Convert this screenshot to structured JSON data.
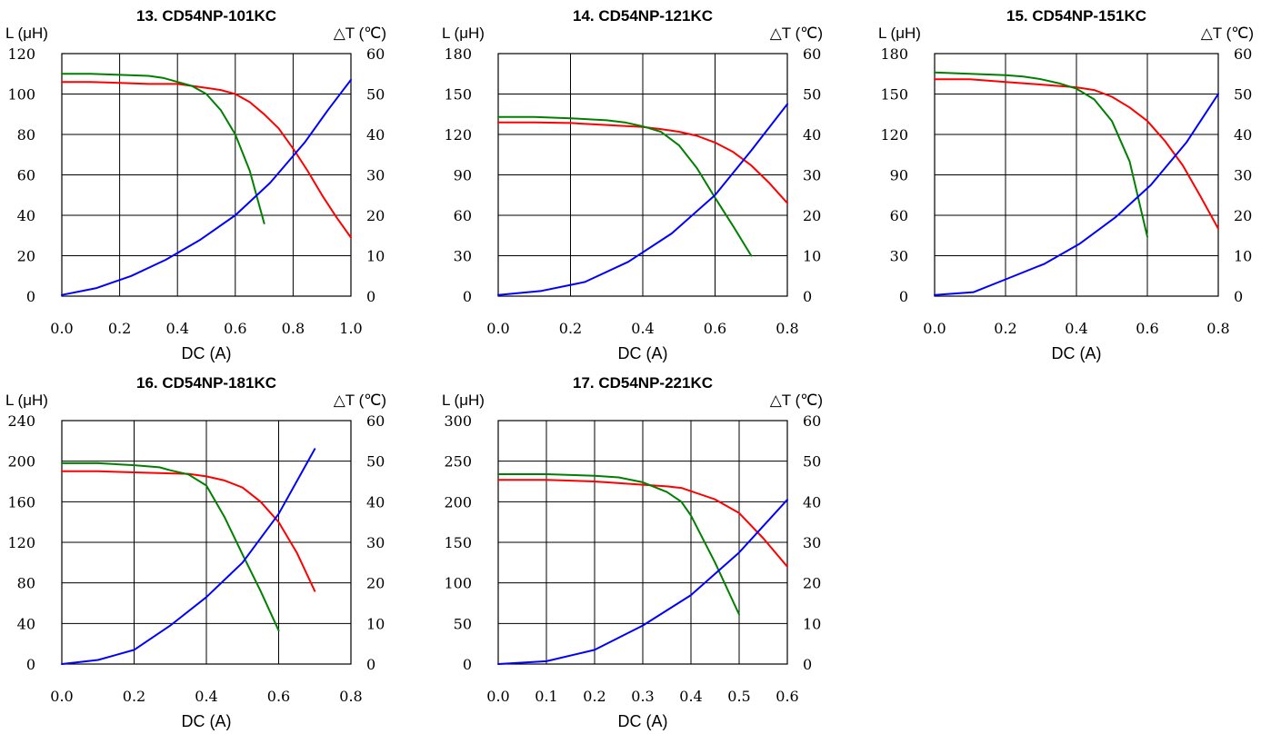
{
  "colors": {
    "red": "#ff0000",
    "green": "#008000",
    "blue": "#0000ff"
  },
  "chart_data": [
    {
      "type": "line",
      "title": "13. CD54NP-101KC",
      "xlabel": "DC (A)",
      "ylabel": "L (μH)",
      "y2label": "△T (℃)",
      "xlim": [
        0,
        1.0
      ],
      "ylim": [
        0,
        120
      ],
      "y2lim": [
        0,
        60
      ],
      "xticks": [
        "0.0",
        "0.2",
        "0.4",
        "0.6",
        "0.8",
        "1.0"
      ],
      "yticks": [
        "0",
        "20",
        "40",
        "60",
        "80",
        "100",
        "120"
      ],
      "y2ticks": [
        "0",
        "10",
        "20",
        "30",
        "40",
        "50",
        "60"
      ],
      "grid": true,
      "series": [
        {
          "color": "red",
          "axis": "left",
          "points": [
            [
              0,
              106
            ],
            [
              0.1,
              106
            ],
            [
              0.2,
              105.5
            ],
            [
              0.3,
              105
            ],
            [
              0.4,
              105
            ],
            [
              0.5,
              103
            ],
            [
              0.55,
              102
            ],
            [
              0.6,
              100
            ],
            [
              0.65,
              96
            ],
            [
              0.7,
              90
            ],
            [
              0.75,
              83
            ],
            [
              0.8,
              73
            ],
            [
              0.85,
              62
            ],
            [
              0.9,
              50
            ],
            [
              0.95,
              39
            ],
            [
              1.0,
              29
            ]
          ]
        },
        {
          "color": "green",
          "axis": "left",
          "points": [
            [
              0,
              110
            ],
            [
              0.1,
              110
            ],
            [
              0.2,
              109.5
            ],
            [
              0.3,
              109
            ],
            [
              0.35,
              108
            ],
            [
              0.4,
              106
            ],
            [
              0.45,
              104
            ],
            [
              0.5,
              100
            ],
            [
              0.55,
              92
            ],
            [
              0.6,
              80
            ],
            [
              0.65,
              62
            ],
            [
              0.7,
              36
            ]
          ]
        },
        {
          "color": "blue",
          "axis": "right",
          "points": [
            [
              0,
              0.3
            ],
            [
              0.12,
              2
            ],
            [
              0.24,
              5
            ],
            [
              0.36,
              9
            ],
            [
              0.48,
              14
            ],
            [
              0.6,
              20
            ],
            [
              0.72,
              28
            ],
            [
              0.84,
              38
            ],
            [
              0.92,
              46
            ],
            [
              1.0,
              53.5
            ]
          ]
        }
      ]
    },
    {
      "type": "line",
      "title": "14. CD54NP-121KC",
      "xlabel": "DC (A)",
      "ylabel": "L (μH)",
      "y2label": "△T (℃)",
      "xlim": [
        0,
        0.8
      ],
      "ylim": [
        0,
        180
      ],
      "y2lim": [
        0,
        60
      ],
      "xticks": [
        "0.0",
        "0.2",
        "0.4",
        "0.6",
        "0.8"
      ],
      "yticks": [
        "0",
        "30",
        "60",
        "90",
        "120",
        "150",
        "180"
      ],
      "y2ticks": [
        "0",
        "10",
        "20",
        "30",
        "40",
        "50",
        "60"
      ],
      "grid": true,
      "series": [
        {
          "color": "red",
          "axis": "left",
          "points": [
            [
              0,
              129
            ],
            [
              0.1,
              129
            ],
            [
              0.2,
              128.5
            ],
            [
              0.3,
              127
            ],
            [
              0.4,
              125.5
            ],
            [
              0.45,
              124
            ],
            [
              0.5,
              122
            ],
            [
              0.55,
              119
            ],
            [
              0.6,
              114
            ],
            [
              0.65,
              107
            ],
            [
              0.7,
              97
            ],
            [
              0.75,
              84
            ],
            [
              0.8,
              69
            ]
          ]
        },
        {
          "color": "green",
          "axis": "left",
          "points": [
            [
              0,
              133
            ],
            [
              0.1,
              133
            ],
            [
              0.2,
              132
            ],
            [
              0.3,
              130.5
            ],
            [
              0.35,
              129
            ],
            [
              0.4,
              126
            ],
            [
              0.45,
              122
            ],
            [
              0.5,
              112
            ],
            [
              0.55,
              95
            ],
            [
              0.6,
              73
            ],
            [
              0.65,
              52
            ],
            [
              0.7,
              30
            ]
          ]
        },
        {
          "color": "blue",
          "axis": "right",
          "points": [
            [
              0,
              0.3
            ],
            [
              0.12,
              1.3
            ],
            [
              0.24,
              3.5
            ],
            [
              0.36,
              8.5
            ],
            [
              0.48,
              15.5
            ],
            [
              0.6,
              25
            ],
            [
              0.7,
              36
            ],
            [
              0.8,
              47.5
            ]
          ]
        }
      ]
    },
    {
      "type": "line",
      "title": "15. CD54NP-151KC",
      "xlabel": "DC (A)",
      "ylabel": "L (μH)",
      "y2label": "△T (℃)",
      "xlim": [
        0,
        0.8
      ],
      "ylim": [
        0,
        180
      ],
      "y2lim": [
        0,
        60
      ],
      "xticks": [
        "0.0",
        "0.2",
        "0.4",
        "0.6",
        "0.8"
      ],
      "yticks": [
        "0",
        "30",
        "60",
        "90",
        "120",
        "150",
        "180"
      ],
      "y2ticks": [
        "0",
        "10",
        "20",
        "30",
        "40",
        "50",
        "60"
      ],
      "grid": true,
      "series": [
        {
          "color": "red",
          "axis": "left",
          "points": [
            [
              0,
              161
            ],
            [
              0.1,
              161
            ],
            [
              0.2,
              159
            ],
            [
              0.3,
              157
            ],
            [
              0.35,
              156
            ],
            [
              0.4,
              155
            ],
            [
              0.45,
              153
            ],
            [
              0.5,
              148
            ],
            [
              0.55,
              140
            ],
            [
              0.6,
              130
            ],
            [
              0.65,
              115
            ],
            [
              0.7,
              97
            ],
            [
              0.75,
              74
            ],
            [
              0.8,
              50
            ]
          ]
        },
        {
          "color": "green",
          "axis": "left",
          "points": [
            [
              0,
              166
            ],
            [
              0.1,
              165
            ],
            [
              0.2,
              164
            ],
            [
              0.25,
              163
            ],
            [
              0.3,
              161
            ],
            [
              0.35,
              158
            ],
            [
              0.4,
              154
            ],
            [
              0.45,
              146
            ],
            [
              0.5,
              130
            ],
            [
              0.55,
              100
            ],
            [
              0.6,
              44
            ]
          ]
        },
        {
          "color": "blue",
          "axis": "right",
          "points": [
            [
              0,
              0.3
            ],
            [
              0.11,
              1
            ],
            [
              0.21,
              4.5
            ],
            [
              0.31,
              8
            ],
            [
              0.41,
              13
            ],
            [
              0.51,
              19.5
            ],
            [
              0.61,
              27.5
            ],
            [
              0.71,
              38
            ],
            [
              0.8,
              50
            ]
          ]
        }
      ]
    },
    {
      "type": "line",
      "title": "16. CD54NP-181KC",
      "xlabel": "DC (A)",
      "ylabel": "L (μH)",
      "y2label": "△T (℃)",
      "xlim": [
        0,
        0.8
      ],
      "ylim": [
        0,
        240
      ],
      "y2lim": [
        0,
        60
      ],
      "xticks": [
        "0.0",
        "0.2",
        "0.4",
        "0.6",
        "0.8"
      ],
      "yticks": [
        "0",
        "40",
        "80",
        "120",
        "160",
        "200",
        "240"
      ],
      "y2ticks": [
        "0",
        "10",
        "20",
        "30",
        "40",
        "50",
        "60"
      ],
      "grid": true,
      "series": [
        {
          "color": "red",
          "axis": "left",
          "points": [
            [
              0,
              190
            ],
            [
              0.1,
              190
            ],
            [
              0.2,
              189
            ],
            [
              0.3,
              188
            ],
            [
              0.35,
              187.5
            ],
            [
              0.4,
              185
            ],
            [
              0.45,
              181
            ],
            [
              0.5,
              174
            ],
            [
              0.55,
              160
            ],
            [
              0.6,
              140
            ],
            [
              0.65,
              110
            ],
            [
              0.7,
              72
            ]
          ]
        },
        {
          "color": "green",
          "axis": "left",
          "points": [
            [
              0,
              198
            ],
            [
              0.1,
              198
            ],
            [
              0.2,
              196
            ],
            [
              0.27,
              194
            ],
            [
              0.3,
              191
            ],
            [
              0.35,
              187
            ],
            [
              0.4,
              176
            ],
            [
              0.45,
              145
            ],
            [
              0.5,
              108
            ],
            [
              0.55,
              72
            ],
            [
              0.6,
              33
            ]
          ]
        },
        {
          "color": "blue",
          "axis": "right",
          "points": [
            [
              0,
              0
            ],
            [
              0.1,
              1
            ],
            [
              0.2,
              3.5
            ],
            [
              0.3,
              9.5
            ],
            [
              0.4,
              16.5
            ],
            [
              0.5,
              25
            ],
            [
              0.6,
              37
            ],
            [
              0.7,
              53
            ]
          ]
        }
      ]
    },
    {
      "type": "line",
      "title": "17. CD54NP-221KC",
      "xlabel": "DC (A)",
      "ylabel": "L (μH)",
      "y2label": "△T (℃)",
      "xlim": [
        0,
        0.6
      ],
      "ylim": [
        0,
        300
      ],
      "y2lim": [
        0,
        60
      ],
      "xticks": [
        "0.0",
        "0.1",
        "0.2",
        "0.3",
        "0.4",
        "0.5",
        "0.6"
      ],
      "yticks": [
        "0",
        "50",
        "100",
        "150",
        "200",
        "250",
        "300"
      ],
      "y2ticks": [
        "0",
        "10",
        "20",
        "30",
        "40",
        "50",
        "60"
      ],
      "grid": true,
      "series": [
        {
          "color": "red",
          "axis": "left",
          "points": [
            [
              0,
              227
            ],
            [
              0.1,
              227
            ],
            [
              0.2,
              225
            ],
            [
              0.3,
              221
            ],
            [
              0.35,
              219
            ],
            [
              0.38,
              217
            ],
            [
              0.4,
              213
            ],
            [
              0.45,
              203
            ],
            [
              0.5,
              186
            ],
            [
              0.55,
              155
            ],
            [
              0.6,
              120
            ]
          ]
        },
        {
          "color": "green",
          "axis": "left",
          "points": [
            [
              0,
              234
            ],
            [
              0.1,
              234
            ],
            [
              0.2,
              232
            ],
            [
              0.25,
              230
            ],
            [
              0.3,
              224
            ],
            [
              0.35,
              212
            ],
            [
              0.38,
              200
            ],
            [
              0.4,
              183
            ],
            [
              0.45,
              125
            ],
            [
              0.5,
              61
            ]
          ]
        },
        {
          "color": "blue",
          "axis": "right",
          "points": [
            [
              0,
              0
            ],
            [
              0.1,
              0.7
            ],
            [
              0.2,
              3.5
            ],
            [
              0.3,
              9.5
            ],
            [
              0.4,
              17
            ],
            [
              0.5,
              27.5
            ],
            [
              0.6,
              40.5
            ]
          ]
        }
      ]
    }
  ]
}
